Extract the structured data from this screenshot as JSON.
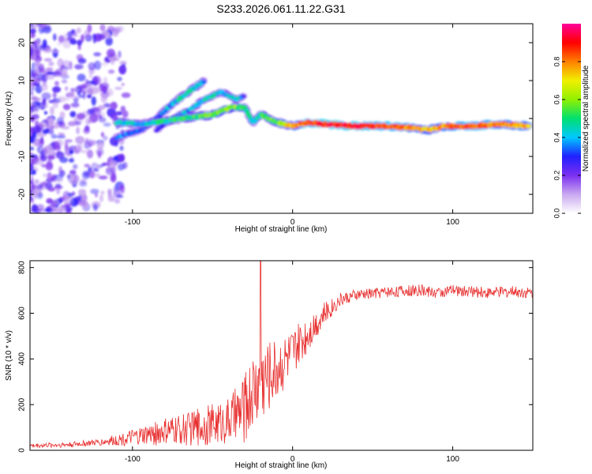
{
  "title": "S233.2026.061.11.22.G31",
  "spectrogram": {
    "type": "heatmap",
    "xlabel": "Height of straight line (km)",
    "ylabel": "Frequency (Hz)",
    "xlim": [
      -164,
      150
    ],
    "ylim": [
      -25,
      25
    ],
    "x_ticks": [
      -100,
      0,
      100
    ],
    "y_ticks": [
      -20,
      -10,
      0,
      10,
      20
    ],
    "colorbar": {
      "label": "Normalized spectral amplitude",
      "range": [
        0,
        1
      ],
      "ticks": [
        "0.0",
        "0.2",
        "0.4",
        "0.6",
        "0.8"
      ],
      "colors": [
        "#ffffff",
        "#c9a8f0",
        "#7b2ff0",
        "#2020ff",
        "#00c8ff",
        "#00e070",
        "#90f000",
        "#f0f000",
        "#ff8000",
        "#ff0000",
        "#ff0099"
      ]
    },
    "main_trace": {
      "x": [
        -110,
        -95,
        -85,
        -70,
        -50,
        -38,
        -30,
        -25,
        -20,
        -10,
        0,
        10,
        20,
        40,
        60,
        75,
        85,
        95,
        110,
        130,
        148
      ],
      "y": [
        -1,
        -1.5,
        -1,
        0,
        1,
        3,
        3,
        -1,
        1,
        -1,
        -2,
        -1,
        -1.5,
        -2,
        -2,
        -2.5,
        -3,
        -2,
        -2,
        -1.5,
        -2
      ],
      "amplitude": [
        0.45,
        0.4,
        0.45,
        0.5,
        0.55,
        0.6,
        0.5,
        0.45,
        0.5,
        0.55,
        0.75,
        0.85,
        0.9,
        0.9,
        0.85,
        0.8,
        0.7,
        0.8,
        0.85,
        0.8,
        0.75
      ]
    },
    "secondary_trace": {
      "x": [
        -110,
        -95,
        -85,
        -75,
        -65,
        -55
      ],
      "y": [
        -5,
        -3,
        0,
        4,
        7,
        10
      ],
      "amplitude": [
        0.35,
        0.3,
        0.35,
        0.4,
        0.45,
        0.4
      ]
    },
    "upper_branch": {
      "x": [
        -85,
        -75,
        -65,
        -55,
        -45,
        -35,
        -30
      ],
      "y": [
        -3,
        0,
        2,
        5,
        7,
        5,
        6
      ],
      "amplitude": [
        0.3,
        0.35,
        0.4,
        0.45,
        0.4,
        0.45,
        0.3
      ]
    }
  },
  "chart_data": [
    {
      "type": "heatmap",
      "title": "S233.2026.061.11.22.G31",
      "xlabel": "Height of straight line (km)",
      "ylabel": "Frequency (Hz)",
      "xlim": [
        -164,
        150
      ],
      "ylim": [
        -25,
        25
      ]
    },
    {
      "type": "line",
      "xlabel": "Height of straight line (km)",
      "ylabel": "SNR (10 * v/v)",
      "xlim": [
        -164,
        150
      ],
      "ylim": [
        0,
        830
      ],
      "x_ticks": [
        -100,
        0,
        100
      ],
      "y_ticks": [
        0,
        200,
        400,
        600,
        800
      ],
      "color": "#e83030",
      "envelope": {
        "x": [
          -164,
          -140,
          -120,
          -100,
          -80,
          -60,
          -40,
          -30,
          -25,
          -20,
          -15,
          -10,
          0,
          10,
          20,
          30,
          40,
          60,
          80,
          90,
          100,
          120,
          140,
          150
        ],
        "mean": [
          20,
          25,
          35,
          55,
          80,
          100,
          130,
          180,
          260,
          300,
          330,
          360,
          420,
          520,
          600,
          660,
          680,
          695,
          700,
          690,
          700,
          690,
          695,
          690
        ],
        "spread": [
          10,
          12,
          15,
          35,
          60,
          80,
          100,
          150,
          170,
          180,
          160,
          140,
          110,
          80,
          50,
          30,
          25,
          25,
          25,
          25,
          25,
          25,
          25,
          25
        ]
      },
      "spike": {
        "x": -20,
        "y": 830
      }
    }
  ]
}
